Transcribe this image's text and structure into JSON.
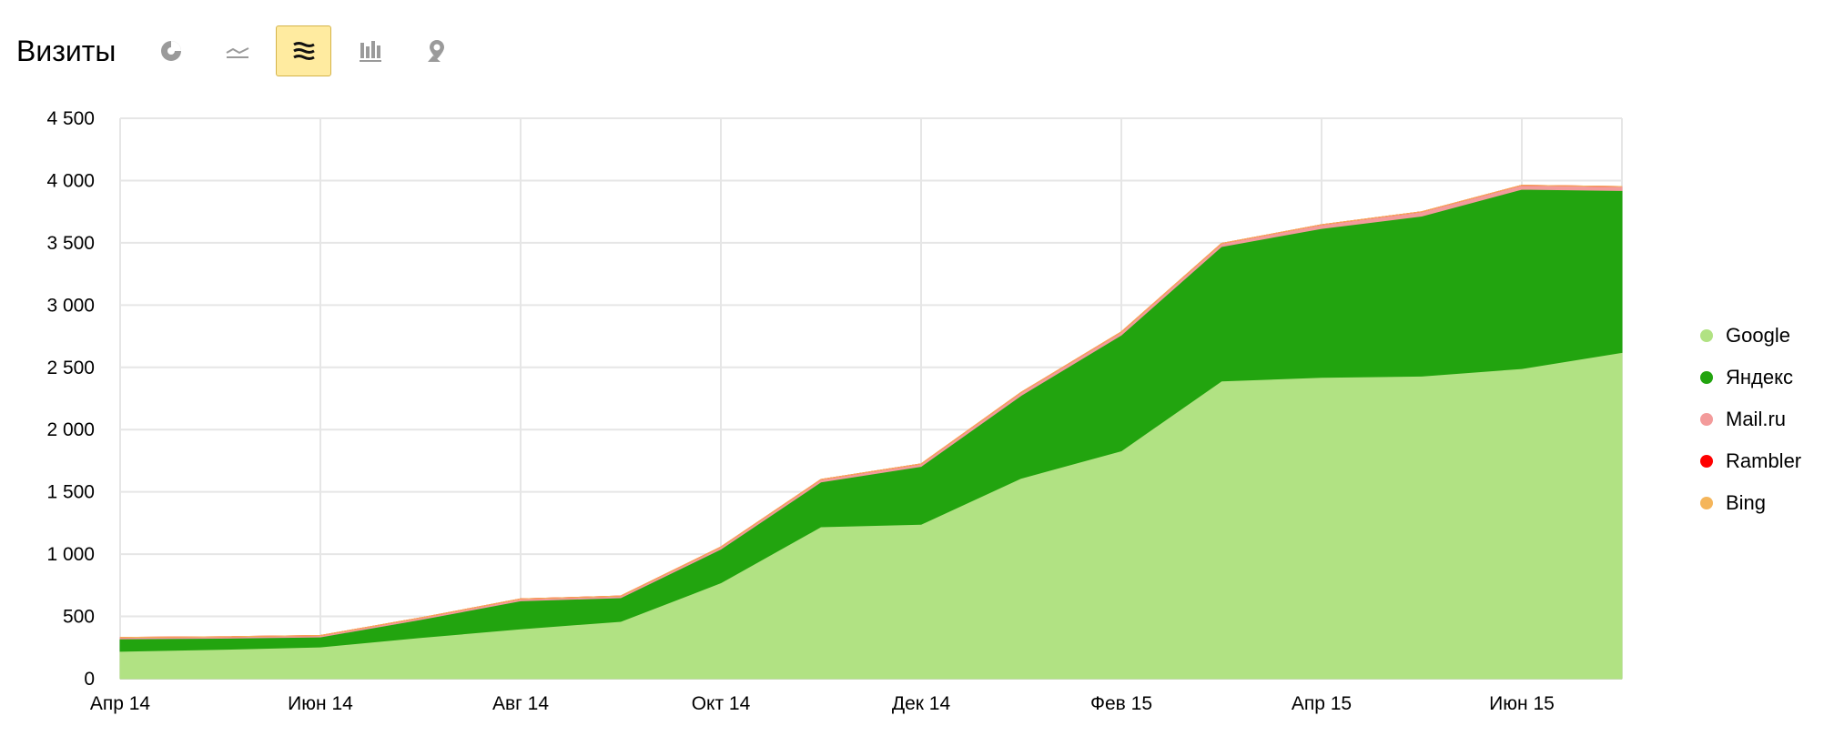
{
  "header": {
    "title": "Визиты",
    "buttons": [
      {
        "name": "pie-chart-view-button",
        "icon": "pie-chart-icon",
        "active": false
      },
      {
        "name": "line-chart-view-button",
        "icon": "line-chart-icon",
        "active": false
      },
      {
        "name": "area-chart-view-button",
        "icon": "stacked-area-icon",
        "active": true
      },
      {
        "name": "bar-chart-view-button",
        "icon": "bar-chart-icon",
        "active": false
      },
      {
        "name": "map-view-button",
        "icon": "map-pin-icon",
        "active": false
      }
    ]
  },
  "colors": {
    "google": "#b1e283",
    "yandex": "#22a40f",
    "mailru": "#f39b9b",
    "rambler": "#ff0000",
    "bing": "#f5b55a",
    "grid": "#e6e6e6",
    "active_button_bg": "#ffeba0"
  },
  "chart_data": {
    "type": "area",
    "stacked": true,
    "x": [
      "2014-04",
      "2014-05",
      "2014-06",
      "2014-07",
      "2014-08",
      "2014-09",
      "2014-10",
      "2014-11",
      "2014-12",
      "2015-01",
      "2015-02",
      "2015-03",
      "2015-04",
      "2015-05",
      "2015-06",
      "2015-07"
    ],
    "xticks": [
      {
        "index": 0,
        "label": "Апр 14"
      },
      {
        "index": 2,
        "label": "Июн 14"
      },
      {
        "index": 4,
        "label": "Авг 14"
      },
      {
        "index": 6,
        "label": "Окт 14"
      },
      {
        "index": 8,
        "label": "Дек 14"
      },
      {
        "index": 10,
        "label": "Фев 15"
      },
      {
        "index": 12,
        "label": "Апр 15"
      },
      {
        "index": 14,
        "label": "Июн 15"
      }
    ],
    "yticks": [
      {
        "value": 0,
        "label": "0"
      },
      {
        "value": 500,
        "label": "500"
      },
      {
        "value": 1000,
        "label": "1 000"
      },
      {
        "value": 1500,
        "label": "1 500"
      },
      {
        "value": 2000,
        "label": "2 000"
      },
      {
        "value": 2500,
        "label": "2 500"
      },
      {
        "value": 3000,
        "label": "3 000"
      },
      {
        "value": 3500,
        "label": "3 500"
      },
      {
        "value": 4000,
        "label": "4 000"
      },
      {
        "value": 4500,
        "label": "4 500"
      }
    ],
    "ylim": [
      0,
      4500
    ],
    "grid": true,
    "legend_position": "right",
    "series": [
      {
        "name": "Google",
        "key": "google",
        "values": [
          220,
          235,
          255,
          330,
          400,
          460,
          770,
          1220,
          1240,
          1610,
          1830,
          2390,
          2420,
          2430,
          2490,
          2620
        ]
      },
      {
        "name": "Яндекс",
        "key": "yandex",
        "values": [
          100,
          90,
          80,
          145,
          225,
          190,
          270,
          360,
          465,
          665,
          930,
          1080,
          1195,
          1285,
          1440,
          1300
        ]
      },
      {
        "name": "Mail.ru",
        "key": "mailru",
        "values": [
          12,
          12,
          12,
          14,
          16,
          14,
          18,
          20,
          20,
          25,
          25,
          25,
          30,
          35,
          32,
          32
        ]
      },
      {
        "name": "Rambler",
        "key": "rambler",
        "values": [
          0,
          0,
          0,
          0,
          0,
          0,
          0,
          0,
          0,
          0,
          0,
          0,
          0,
          0,
          0,
          0
        ]
      },
      {
        "name": "Bing",
        "key": "bing",
        "values": [
          0,
          0,
          0,
          0,
          0,
          0,
          0,
          0,
          0,
          0,
          0,
          0,
          0,
          0,
          0,
          0
        ]
      }
    ]
  }
}
